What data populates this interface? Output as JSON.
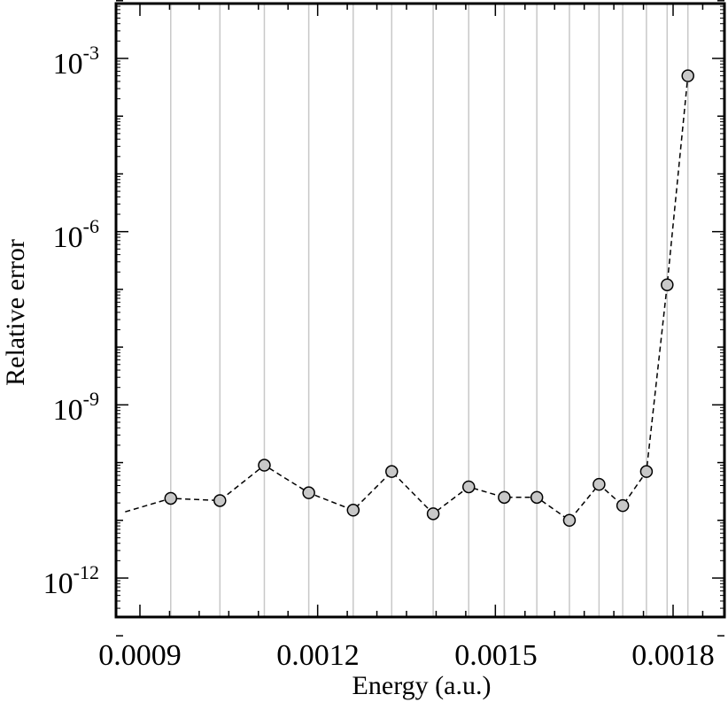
{
  "chart_data": {
    "type": "scatter",
    "xlabel": "Energy (a.u.)",
    "ylabel": "Relative error",
    "x_ticks": [
      "0.0009",
      "0.0012",
      "0.0015",
      "0.0018"
    ],
    "y_ticks": [
      {
        "base": "10",
        "exp": "-3"
      },
      {
        "base": "10",
        "exp": "-6"
      },
      {
        "base": "10",
        "exp": "-9"
      },
      {
        "base": "10",
        "exp": "-12"
      }
    ],
    "xlim": [
      0.000875,
      0.0019
    ],
    "ylim": [
      1e-13,
      0.01
    ],
    "y_scale": "log",
    "grid": "vertical lines at data x-values",
    "series": [
      {
        "line_style": "dashed",
        "marker": "circle",
        "marker_color": "#c8c8c8",
        "x": [
          0.000875,
          0.000952,
          0.001035,
          0.00111,
          0.001185,
          0.00126,
          0.001325,
          0.001395,
          0.001455,
          0.001515,
          0.00157,
          0.001625,
          0.001675,
          0.001715,
          0.001755,
          0.00179,
          0.001825
        ],
        "y": [
          1.4e-11,
          2.4e-11,
          2.2e-11,
          9e-11,
          3e-11,
          1.5e-11,
          7e-11,
          1.3e-11,
          3.8e-11,
          2.5e-11,
          2.5e-11,
          1e-11,
          4.2e-11,
          1.8e-11,
          7e-11,
          1.2e-07,
          0.0005
        ],
        "marker_from_index": 1
      }
    ]
  }
}
